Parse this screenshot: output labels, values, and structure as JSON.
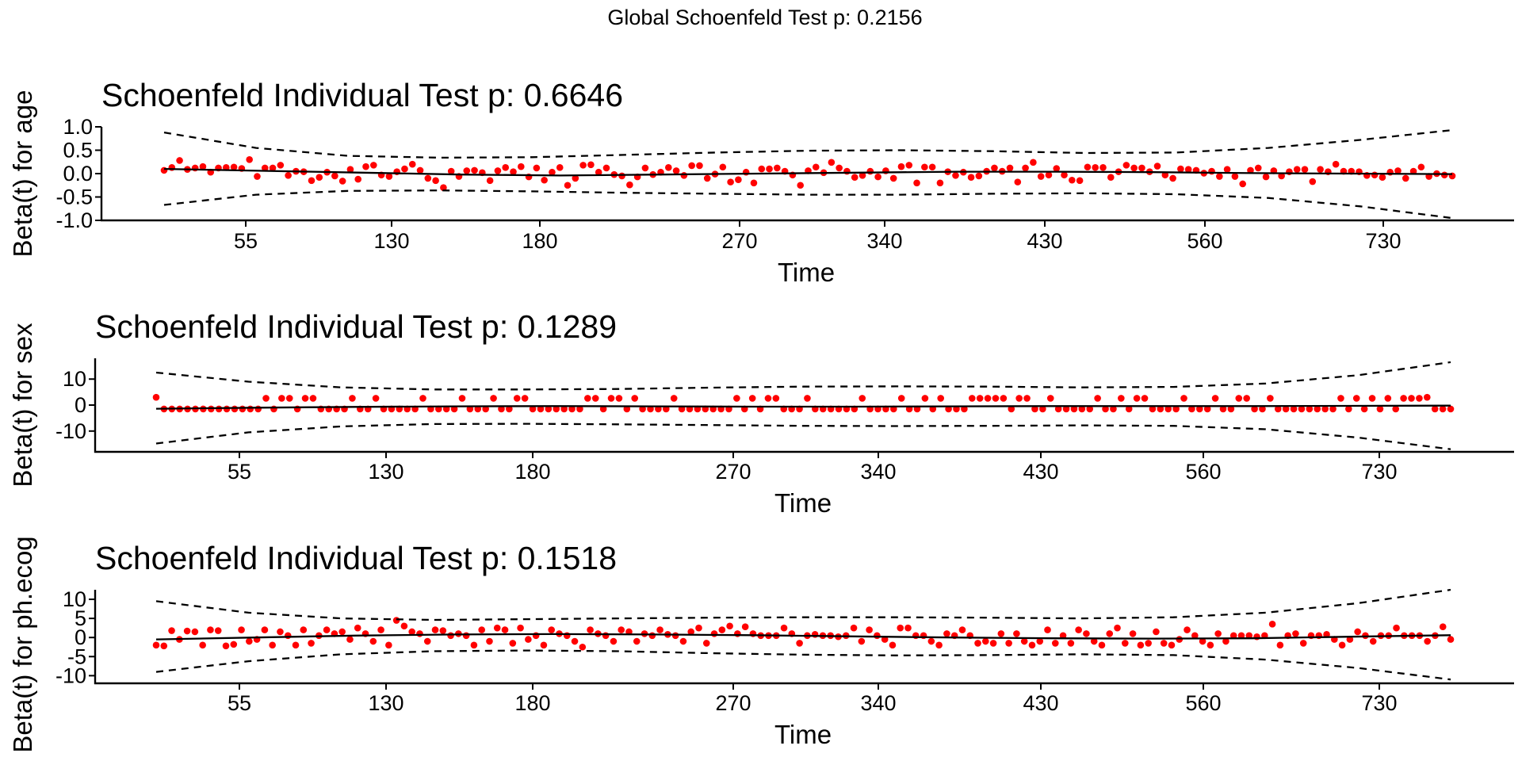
{
  "global_title": "Global Schoenfeld Test p: 0.2156",
  "colors": {
    "points": "#ff0000",
    "lines": "#000000",
    "background": "#ffffff"
  },
  "chart_data": [
    {
      "type": "scatter",
      "title": "Schoenfeld Individual Test p: 0.6646",
      "xlabel": "Time",
      "ylabel": "Beta(t) for age",
      "ylim": [
        -1.0,
        1.0
      ],
      "yticks": [
        1.0,
        0.5,
        0.0,
        -0.5,
        -1.0
      ],
      "yticklabels": [
        "1.0",
        "0.5",
        "0.0",
        "-0.5",
        "-1.0"
      ],
      "xticklabels": [
        "55",
        "130",
        "180",
        "270",
        "340",
        "430",
        "560",
        "730"
      ],
      "x_axis": "transformed time (rank); ticks labelled with original time",
      "grid": false,
      "series": [
        {
          "kind": "residuals",
          "values": [
            0.07,
            0.13,
            0.28,
            0.09,
            0.12,
            0.15,
            0.03,
            0.12,
            0.13,
            0.14,
            0.11,
            0.3,
            -0.06,
            0.12,
            0.12,
            0.18,
            -0.04,
            0.05,
            0.04,
            -0.15,
            -0.08,
            0.03,
            -0.05,
            -0.16,
            0.09,
            -0.12,
            0.15,
            0.18,
            -0.03,
            -0.06,
            0.04,
            0.1,
            0.2,
            0.07,
            -0.1,
            -0.15,
            -0.3,
            0.05,
            -0.06,
            0.06,
            0.07,
            0.02,
            -0.15,
            0.06,
            0.13,
            0.04,
            0.15,
            -0.07,
            0.12,
            -0.14,
            0.03,
            0.13,
            -0.25,
            -0.1,
            0.18,
            0.19,
            0.03,
            0.12,
            -0.02,
            -0.05,
            -0.24,
            -0.07,
            0.12,
            -0.02,
            0.03,
            0.13,
            0.06,
            -0.04,
            0.17,
            0.17,
            -0.1,
            -0.01,
            0.14,
            -0.18,
            -0.13,
            0.03,
            -0.2,
            0.1,
            0.1,
            0.12,
            0.05,
            -0.03,
            -0.25,
            0.06,
            0.14,
            0.02,
            0.24,
            0.12,
            0.05,
            -0.08,
            -0.04,
            0.05,
            -0.07,
            0.06,
            -0.1,
            0.15,
            0.18,
            -0.2,
            0.14,
            0.14,
            -0.2,
            0.04,
            -0.04,
            0.03,
            -0.08,
            -0.05,
            0.05,
            0.12,
            0.05,
            0.12,
            -0.18,
            0.12,
            0.24,
            -0.06,
            -0.03,
            0.11,
            -0.03,
            -0.14,
            -0.15,
            0.14,
            0.13,
            0.13,
            -0.08,
            0.04,
            0.18,
            0.12,
            0.12,
            0.04,
            0.16,
            -0.03,
            -0.1,
            0.1,
            0.09,
            0.07,
            0.01,
            0.05,
            -0.06,
            0.09,
            -0.06,
            -0.22,
            0.07,
            0.12,
            -0.07,
            0.06,
            -0.05,
            0.04,
            0.09,
            0.09,
            -0.17,
            0.09,
            0.04,
            0.2,
            0.05,
            0.05,
            0.04,
            -0.04,
            -0.03,
            -0.08,
            0.03,
            0.06,
            -0.1,
            0.05,
            0.14,
            -0.06,
            0.0,
            -0.03,
            -0.05
          ]
        },
        {
          "kind": "smooth",
          "values": [
            0.1,
            0.06,
            0.02,
            -0.02,
            -0.04,
            -0.02,
            0.0,
            0.02,
            0.04,
            0.04,
            0.03,
            0.01,
            0.0,
            -0.01
          ]
        },
        {
          "kind": "upper_band",
          "values": [
            0.88,
            0.55,
            0.38,
            0.34,
            0.35,
            0.4,
            0.45,
            0.49,
            0.5,
            0.48,
            0.44,
            0.45,
            0.55,
            0.72,
            0.93
          ]
        },
        {
          "kind": "lower_band",
          "values": [
            -0.67,
            -0.45,
            -0.37,
            -0.36,
            -0.38,
            -0.41,
            -0.43,
            -0.45,
            -0.45,
            -0.43,
            -0.42,
            -0.44,
            -0.52,
            -0.7,
            -0.95
          ]
        }
      ]
    },
    {
      "type": "scatter",
      "title": "Schoenfeld Individual Test p: 0.1289",
      "xlabel": "Time",
      "ylabel": "Beta(t) for sex",
      "ylim": [
        -18,
        18
      ],
      "yticks": [
        10,
        0,
        -10
      ],
      "yticklabels": [
        "10",
        "0",
        "-10"
      ],
      "xticklabels": [
        "55",
        "130",
        "180",
        "270",
        "340",
        "430",
        "560",
        "730"
      ],
      "grid": false,
      "series": [
        {
          "kind": "residuals",
          "values": [
            3,
            -1.5,
            -1.5,
            -1.5,
            -1.5,
            -1.5,
            -1.5,
            -1.5,
            -1.5,
            -1.5,
            -1.5,
            -1.5,
            -1.5,
            -1.5,
            2.6,
            -1.5,
            2.6,
            2.6,
            -1.5,
            2.6,
            2.6,
            -1.5,
            -1.5,
            -1.5,
            -1.5,
            2.6,
            -1.5,
            -1.5,
            2.6,
            -1.5,
            -1.5,
            -1.5,
            -1.5,
            -1.5,
            2.6,
            -1.5,
            -1.5,
            -1.5,
            -1.5,
            2.6,
            -1.5,
            -1.5,
            -1.5,
            2.6,
            -1.5,
            -1.5,
            2.6,
            2.6,
            -1.5,
            -1.5,
            -1.5,
            -1.5,
            -1.5,
            -1.5,
            -1.5,
            2.6,
            2.6,
            -1.5,
            2.6,
            2.6,
            -1.5,
            2.6,
            -1.5,
            -1.5,
            -1.5,
            -1.5,
            2.6,
            -1.5,
            -1.5,
            -1.5,
            -1.5,
            -1.5,
            -1.5,
            -1.5,
            2.6,
            -1.5,
            2.6,
            -1.5,
            2.6,
            2.6,
            -1.5,
            -1.5,
            -1.5,
            2.6,
            -1.5,
            -1.5,
            -1.5,
            -1.5,
            -1.5,
            -1.5,
            2.6,
            -1.5,
            -1.5,
            -1.5,
            -1.5,
            2.6,
            -1.5,
            -1.5,
            2.6,
            -1.5,
            2.6,
            -1.5,
            -1.5,
            -1.5,
            2.6,
            2.6,
            2.6,
            2.6,
            2.6,
            -1.5,
            2.6,
            2.6,
            -1.5,
            -1.5,
            2.6,
            -1.5,
            -1.5,
            -1.5,
            -1.5,
            -1.5,
            2.6,
            -1.5,
            -1.5,
            2.6,
            -1.5,
            2.6,
            2.6,
            -1.5,
            -1.5,
            -1.5,
            -1.5,
            2.6,
            -1.5,
            -1.5,
            -1.5,
            2.6,
            -1.5,
            -1.5,
            2.6,
            2.6,
            -1.5,
            -1.5,
            2.6,
            -1.5,
            -1.5,
            -1.5,
            -1.5,
            -1.5,
            -1.5,
            -1.5,
            -1.5,
            2.6,
            -1.5,
            2.6,
            -1.5,
            2.6,
            -1.5,
            2.6,
            -1.5,
            2.6,
            2.6,
            2.6,
            3,
            -1.5,
            -1.5,
            -1.5
          ]
        },
        {
          "kind": "smooth",
          "values": [
            -1.4,
            -1.0,
            -0.7,
            -0.5,
            -0.4,
            -0.5,
            -0.6,
            -0.6,
            -0.5,
            -0.4,
            -0.4,
            -0.4,
            -0.3,
            -0.2
          ]
        },
        {
          "kind": "upper_band",
          "values": [
            12.5,
            9,
            6.8,
            6,
            6,
            6.2,
            6.7,
            7.1,
            7.2,
            7.1,
            6.8,
            7,
            8.3,
            11.5,
            16.5
          ]
        },
        {
          "kind": "lower_band",
          "values": [
            -14.8,
            -10.5,
            -8.2,
            -7.3,
            -7.2,
            -7.4,
            -7.7,
            -8,
            -8.1,
            -8,
            -7.8,
            -8,
            -9.3,
            -12.5,
            -17
          ]
        }
      ]
    },
    {
      "type": "scatter",
      "title": "Schoenfeld Individual Test p: 0.1518",
      "xlabel": "Time",
      "ylabel": "Beta(t) for ph.ecog",
      "ylim": [
        -12,
        12.5
      ],
      "yticks": [
        10,
        5,
        0,
        -5,
        -10
      ],
      "yticklabels": [
        "10",
        "5",
        "0",
        "-5",
        "-10"
      ],
      "xticklabels": [
        "55",
        "130",
        "180",
        "270",
        "340",
        "430",
        "560",
        "730"
      ],
      "grid": false,
      "series": [
        {
          "kind": "residuals",
          "values": [
            -2,
            -2.2,
            1.8,
            -0.5,
            1.7,
            1.5,
            -2,
            2,
            1.8,
            -2.2,
            -1.8,
            2,
            -1,
            -0.5,
            2,
            -2,
            1.5,
            0.5,
            -2,
            2,
            -1.5,
            0.5,
            2,
            1,
            1.5,
            -0.5,
            2.5,
            1,
            -1,
            2,
            -2,
            4.5,
            3,
            1.5,
            1,
            -1,
            2,
            1.8,
            0.5,
            1,
            0.5,
            -2,
            2,
            -1,
            2.5,
            2,
            -1.5,
            2.5,
            -0.5,
            0.5,
            -2,
            2,
            1,
            0.5,
            -1,
            -2.5,
            2,
            1,
            0.5,
            -1,
            2,
            1.5,
            -1,
            1,
            0.5,
            2,
            0.8,
            0.5,
            -1,
            1.5,
            2.5,
            -1.5,
            1,
            2,
            3,
            1,
            2.8,
            1,
            0.5,
            0.5,
            0.5,
            2.5,
            1,
            -1.5,
            0.5,
            0.8,
            0.5,
            0.5,
            0.2,
            0.5,
            2.5,
            -1,
            2,
            0.5,
            -0.5,
            -2,
            2.5,
            2.5,
            0.5,
            0.5,
            -1,
            -2,
            1,
            0.5,
            2,
            0.5,
            -1.5,
            -1,
            -1.5,
            1,
            -1.5,
            1,
            -1,
            -2,
            -1,
            2,
            -1.5,
            0.5,
            -1.5,
            2,
            1,
            -1,
            -2,
            1,
            2.5,
            -1.5,
            1,
            -2,
            -1.5,
            1.5,
            -1.5,
            -2,
            -0.5,
            2,
            0.5,
            -1,
            -2,
            1,
            -1,
            0.5,
            0.5,
            0.5,
            0.2,
            0.5,
            3.5,
            -2,
            0.5,
            1,
            -1.5,
            0.5,
            0.5,
            0.8,
            -0.5,
            -2,
            -0.5,
            1.5,
            0.5,
            -1,
            0.5,
            0.5,
            2.5,
            0.5,
            0.5,
            0.5,
            -1,
            0.5,
            2.8,
            -0.5
          ]
        },
        {
          "kind": "smooth",
          "values": [
            -0.5,
            0.0,
            0.5,
            0.8,
            0.9,
            0.8,
            0.6,
            0.3,
            0.0,
            -0.2,
            -0.3,
            -0.2,
            0.2,
            0.6
          ]
        },
        {
          "kind": "upper_band",
          "values": [
            9.5,
            6.5,
            5,
            4.6,
            4.8,
            5,
            5.2,
            5.3,
            5.3,
            5.2,
            5,
            5.3,
            6.5,
            9,
            12.5
          ]
        },
        {
          "kind": "lower_band",
          "values": [
            -9,
            -6.2,
            -4.4,
            -3.6,
            -3.4,
            -3.6,
            -4.1,
            -4.5,
            -4.7,
            -4.6,
            -4.4,
            -4.6,
            -5.8,
            -8,
            -11
          ]
        }
      ]
    }
  ]
}
